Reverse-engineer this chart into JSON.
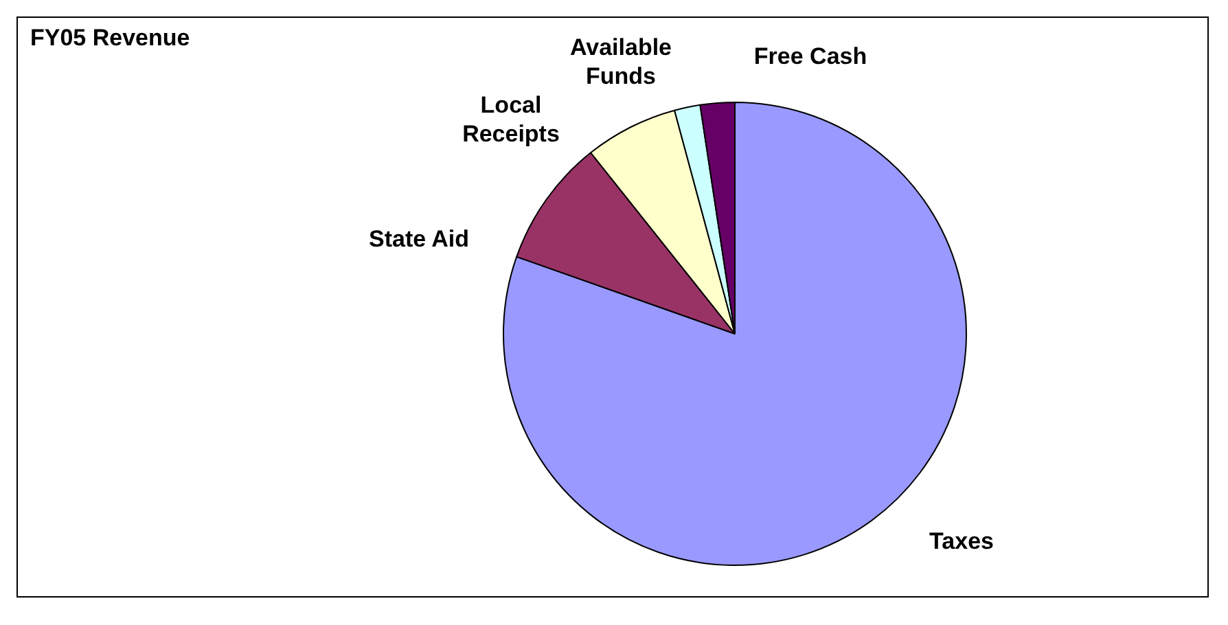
{
  "chart_data": {
    "type": "pie",
    "title": "FY05 Revenue",
    "categories": [
      "Taxes",
      "State Aid",
      "Local\nReceipts",
      "Available\nFunds",
      "Free Cash"
    ],
    "values": [
      80.4,
      8.9,
      6.5,
      1.8,
      2.4
    ],
    "colors": [
      "#9999ff",
      "#993366",
      "#ffffcc",
      "#ccffff",
      "#660066"
    ],
    "legend": false
  }
}
